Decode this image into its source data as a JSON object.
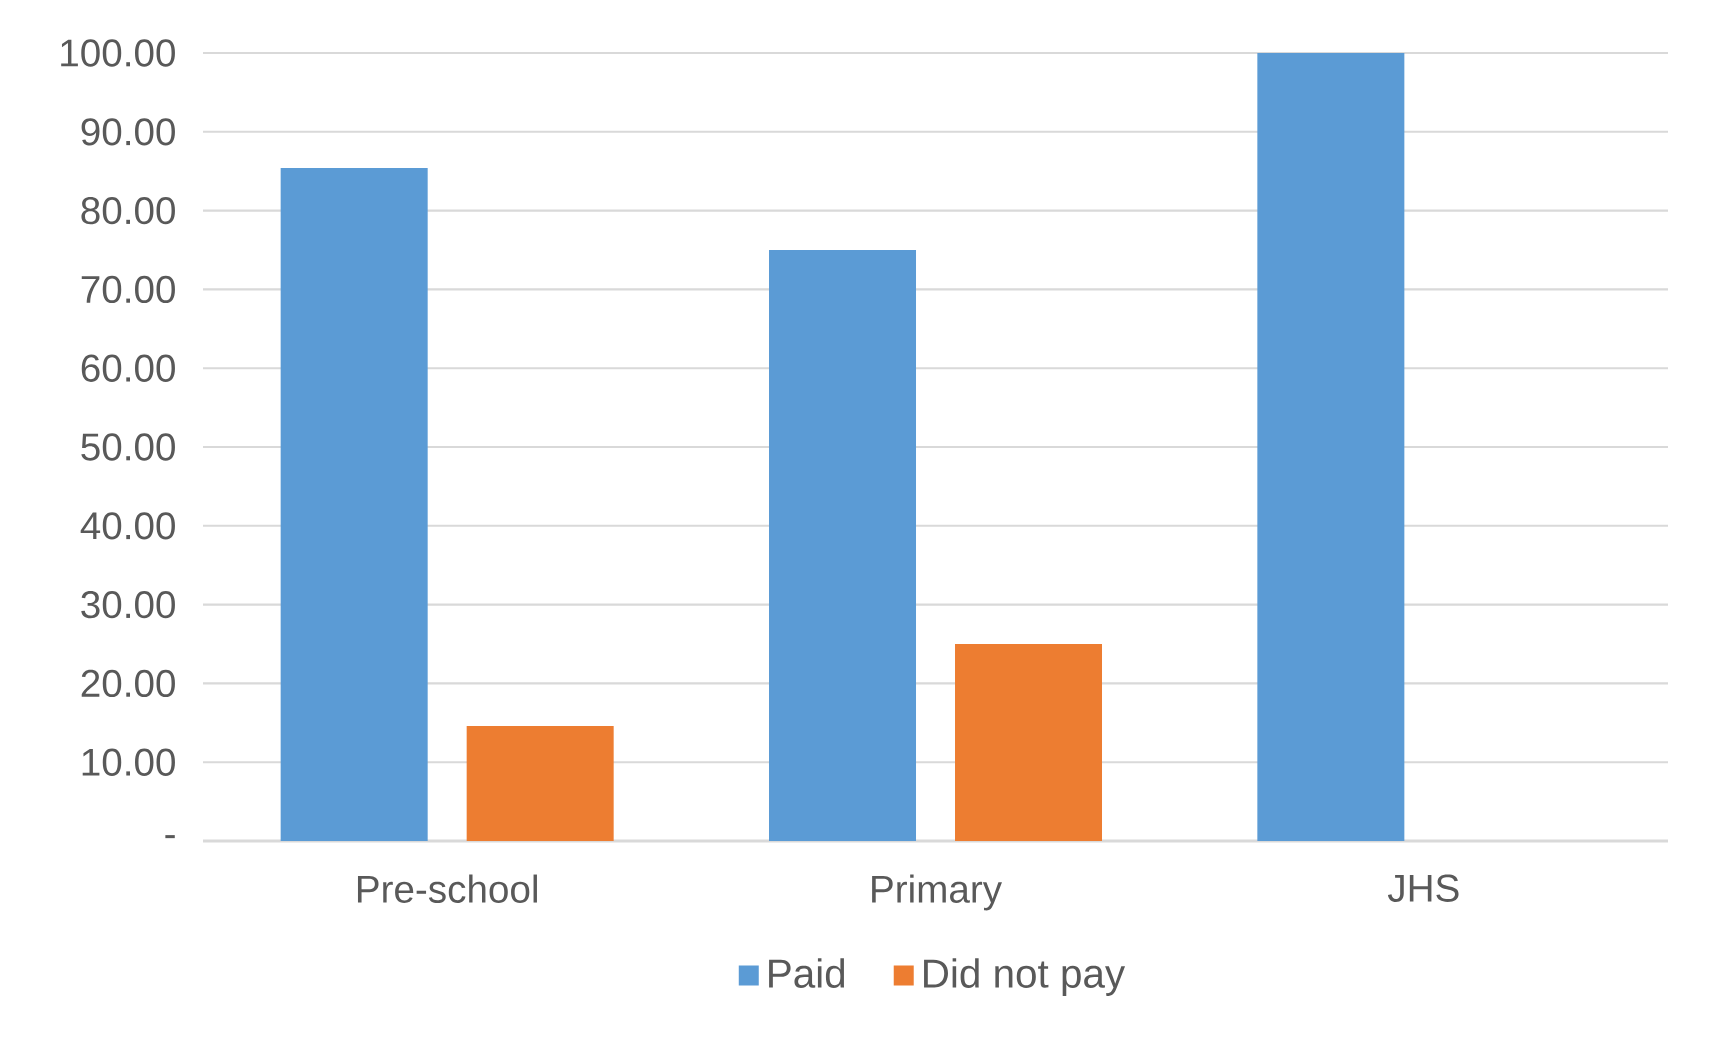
{
  "chart_data": {
    "type": "bar",
    "categories": [
      "Pre-school",
      "Primary",
      "JHS"
    ],
    "series": [
      {
        "name": "Paid",
        "color": "#5b9bd5",
        "values": [
          85.4,
          75,
          100
        ]
      },
      {
        "name": "Did not pay",
        "color": "#ed7d31",
        "values": [
          14.6,
          25,
          0
        ]
      }
    ],
    "ylim": [
      0,
      100
    ],
    "yticks": [
      {
        "value": 0,
        "label": "-"
      },
      {
        "value": 10,
        "label": "10.00"
      },
      {
        "value": 20,
        "label": "20.00"
      },
      {
        "value": 30,
        "label": "30.00"
      },
      {
        "value": 40,
        "label": "40.00"
      },
      {
        "value": 50,
        "label": "50.00"
      },
      {
        "value": 60,
        "label": "60.00"
      },
      {
        "value": 70,
        "label": "70.00"
      },
      {
        "value": 80,
        "label": "80.00"
      },
      {
        "value": 90,
        "label": "90.00"
      },
      {
        "value": 100,
        "label": "100.00"
      }
    ],
    "grid": "y",
    "legend": "bottom"
  }
}
